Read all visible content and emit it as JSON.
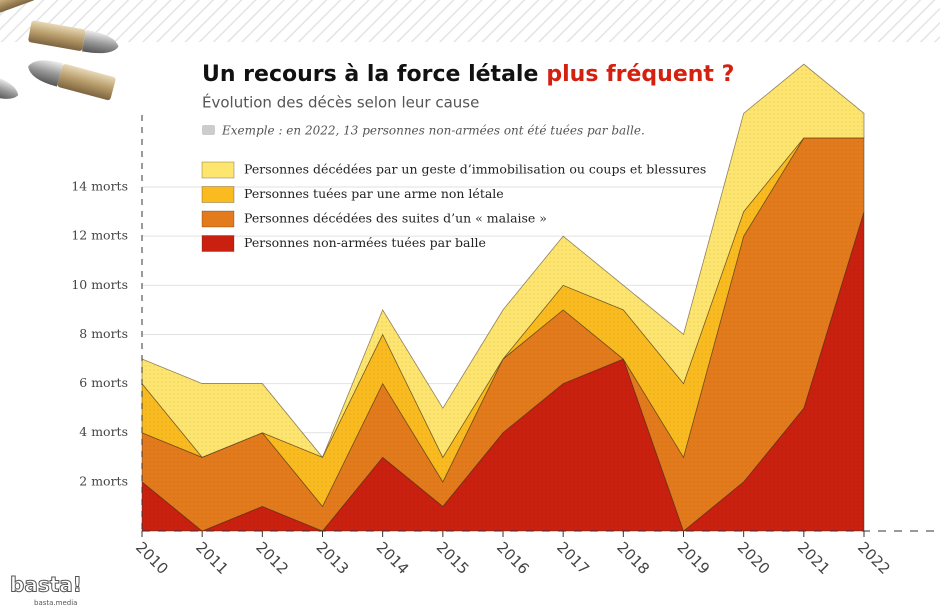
{
  "chart_data": {
    "type": "stacked_area",
    "title": "Un recours à la force létale",
    "title_highlight": "plus fréquent ?",
    "subtitle": "Évolution des décès selon leur cause",
    "annotation": "Exemple : en 2022, 13 personnes non-armées ont été tuées par balle.",
    "categories": [
      "2010",
      "2011",
      "2012",
      "2013",
      "2014",
      "2015",
      "2016",
      "2017",
      "2018",
      "2019",
      "2020",
      "2021",
      "2022"
    ],
    "series": [
      {
        "name": "Personnes non-armées tuées par balle",
        "color": "#c9200f",
        "values": [
          2,
          0,
          1,
          0,
          3,
          1,
          4,
          6,
          7,
          0,
          2,
          5,
          13
        ]
      },
      {
        "name": "Personnes décédées des suites d’un « malaise »",
        "color": "#e37a1c",
        "values": [
          2,
          3,
          3,
          1,
          3,
          1,
          3,
          3,
          0,
          3,
          10,
          11,
          3
        ]
      },
      {
        "name": "Personnes tuées par une arme non létale",
        "color": "#f9bb1f",
        "values": [
          2,
          0,
          0,
          2,
          2,
          1,
          0,
          1,
          2,
          3,
          1,
          0,
          0
        ]
      },
      {
        "name": "Personnes décédées par un geste d’immobilisation ou coups et blessures",
        "color": "#fde56f",
        "values": [
          1,
          3,
          2,
          0,
          1,
          2,
          2,
          2,
          1,
          2,
          4,
          3,
          1
        ]
      }
    ],
    "ylim": [
      0,
      20
    ],
    "yticks": [
      {
        "value": 2,
        "label": "2 morts"
      },
      {
        "value": 4,
        "label": "4 morts"
      },
      {
        "value": 6,
        "label": "6 morts"
      },
      {
        "value": 8,
        "label": "8 morts"
      },
      {
        "value": 10,
        "label": "10 morts"
      },
      {
        "value": 12,
        "label": "12 morts"
      },
      {
        "value": 14,
        "label": "14 morts"
      }
    ],
    "grid": true,
    "logo": "basta!",
    "logo_sub": "basta.media"
  }
}
